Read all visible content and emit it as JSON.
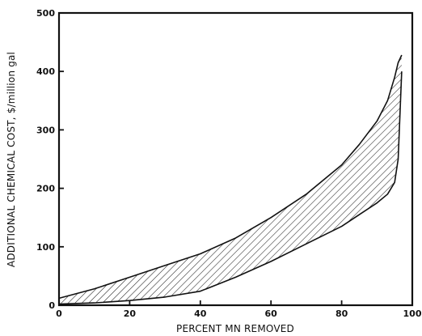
{
  "chart_data": {
    "type": "area",
    "xlabel": "PERCENT MN REMOVED",
    "ylabel": "ADDITIONAL CHEMICAL COST, $/million gal",
    "xlim": [
      0,
      100
    ],
    "ylim": [
      0,
      500
    ],
    "xticks": [
      0,
      20,
      40,
      60,
      80,
      100
    ],
    "yticks": [
      0,
      100,
      200,
      300,
      400,
      500
    ],
    "grid": false,
    "fill_pattern": "diagonal-hatch",
    "series": [
      {
        "x": [
          0,
          10,
          20,
          30,
          40,
          50,
          60,
          70,
          80,
          85,
          90,
          93,
          95,
          96,
          97
        ],
        "y": [
          12,
          28,
          48,
          68,
          88,
          115,
          150,
          190,
          240,
          275,
          315,
          350,
          390,
          415,
          428
        ]
      },
      {
        "x": [
          0,
          10,
          20,
          30,
          40,
          50,
          60,
          70,
          80,
          85,
          90,
          93,
          95,
          96,
          97
        ],
        "y": [
          2,
          4,
          8,
          14,
          24,
          48,
          75,
          105,
          135,
          155,
          175,
          190,
          210,
          250,
          400
        ]
      }
    ]
  }
}
